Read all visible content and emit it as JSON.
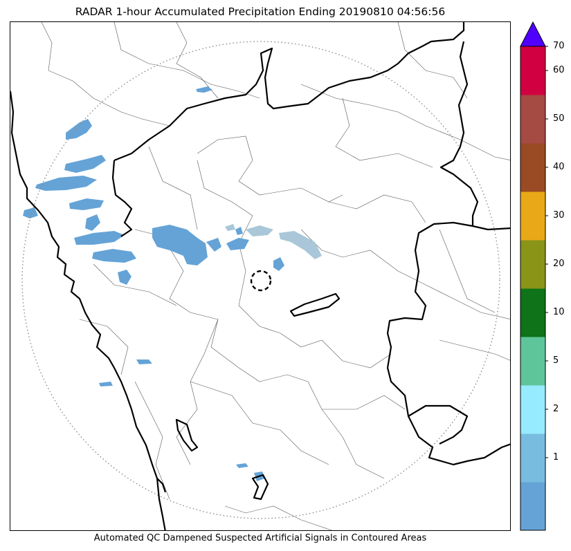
{
  "title": "RADAR 1-hour Accumulated Precipitation Ending 20190810 04:56:56",
  "footnote": "Automated QC Dampened Suspected Artificial Signals in Contoured Areas",
  "colors": {
    "precip_fill": "#65a3d6",
    "qc_fill": "#a9c7d9",
    "boundary_major": "#000000",
    "boundary_minor": "#555555",
    "range_ring": "#8a8a8a"
  },
  "colorbar": {
    "extend": "max",
    "extend_color": "#5000ff",
    "levels": [
      {
        "label": "",
        "color": "#65a3d6"
      },
      {
        "label": "1",
        "color": "#78bde0"
      },
      {
        "label": "2",
        "color": "#96ebff"
      },
      {
        "label": "5",
        "color": "#5ec49a"
      },
      {
        "label": "10",
        "color": "#0e7319"
      },
      {
        "label": "20",
        "color": "#8a9417"
      },
      {
        "label": "30",
        "color": "#e8a817"
      },
      {
        "label": "40",
        "color": "#9a4b24"
      },
      {
        "label": "50",
        "color": "#a64a44"
      },
      {
        "label": "60",
        "color": "#d10040"
      }
    ],
    "top_label": "70"
  }
}
